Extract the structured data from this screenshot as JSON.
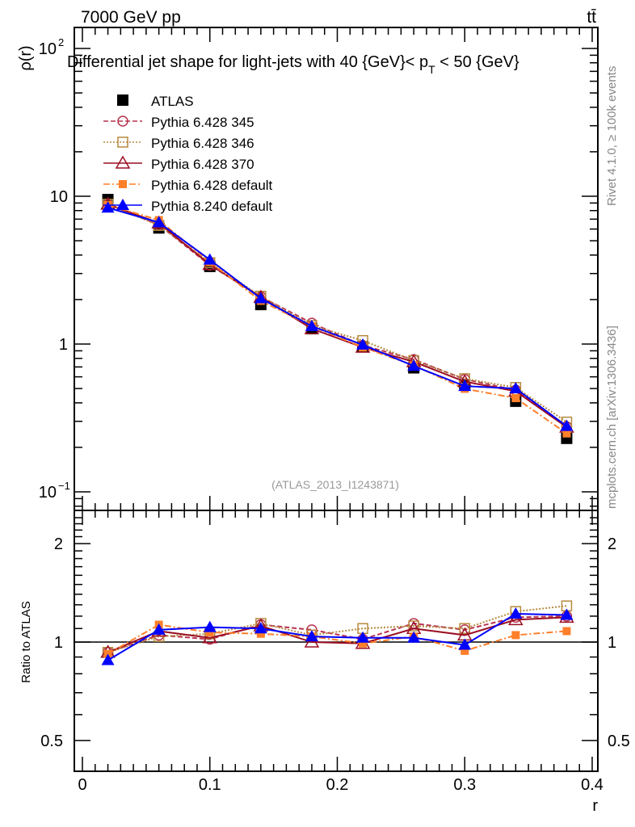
{
  "header": {
    "left": "7000 GeV pp",
    "right": "tt̄"
  },
  "side_texts": {
    "rivet": "Rivet 4.1.0, ≥ 100k events",
    "mcplots": "mcplots.cern.ch [arXiv:1306.3436]"
  },
  "chart_data": [
    {
      "type": "line",
      "title": "Differential jet shape for light-jets with 40 {GeV}< p_T < 50 {GeV}",
      "title_main": "Differential jet shape for light-jets with 40 {GeV}< p",
      "title_sub": "T",
      "title_end": " < 50 {GeV}",
      "ylabel": "ρ(r)",
      "xlabel": "r",
      "yscale": "log",
      "ylim": [
        0.08,
        140
      ],
      "xlim": [
        -0.008,
        0.41
      ],
      "watermark": "(ATLAS_2013_I1243871)",
      "yticks": [
        {
          "v": 0.1,
          "label": "10",
          "exp": "−1"
        },
        {
          "v": 1,
          "label": "1",
          "exp": ""
        },
        {
          "v": 10,
          "label": "10",
          "exp": ""
        },
        {
          "v": 100,
          "label": "10",
          "exp": "2"
        }
      ],
      "x": [
        0.02,
        0.06,
        0.1,
        0.14,
        0.18,
        0.22,
        0.26,
        0.3,
        0.34,
        0.38
      ],
      "atlas": [
        9.5,
        6.1,
        3.35,
        1.85,
        1.27,
        0.96,
        0.69,
        0.53,
        0.41,
        0.23
      ],
      "legend_position": "top-left"
    },
    {
      "type": "line",
      "ylabel": "Ratio to ATLAS",
      "yscale": "log",
      "ylim": [
        0.4,
        2.53
      ],
      "yticks": [
        {
          "v": 0.5,
          "label": "0.5"
        },
        {
          "v": 1,
          "label": "1"
        },
        {
          "v": 2,
          "label": "2"
        }
      ],
      "xticks": [
        {
          "v": 0,
          "label": "0"
        },
        {
          "v": 0.1,
          "label": "0.1"
        },
        {
          "v": 0.2,
          "label": "0.2"
        },
        {
          "v": 0.3,
          "label": "0.3"
        },
        {
          "v": 0.4,
          "label": "0.4"
        }
      ],
      "series": [
        {
          "name": "ATLAS",
          "color": "#000000",
          "marker": "square-filled",
          "dash": "none",
          "ratio": [
            1,
            1,
            1,
            1,
            1,
            1,
            1,
            1,
            1,
            1
          ]
        },
        {
          "name": "Pythia 6.428 345",
          "color": "#b8334f",
          "marker": "circle-open",
          "dash": "6,3",
          "ratio": [
            0.93,
            1.05,
            1.02,
            1.13,
            1.09,
            1.02,
            1.14,
            1.09,
            1.19,
            1.2
          ]
        },
        {
          "name": "Pythia 6.428 346",
          "color": "#b5893e",
          "marker": "square-open",
          "dash": "2,2",
          "ratio": [
            0.93,
            1.04,
            1.06,
            1.14,
            1.05,
            1.1,
            1.12,
            1.1,
            1.24,
            1.29
          ]
        },
        {
          "name": "Pythia 6.428 370",
          "color": "#9b0f24",
          "marker": "triangle-open",
          "dash": "none",
          "ratio": [
            0.93,
            1.08,
            1.03,
            1.12,
            1.0,
            0.99,
            1.1,
            1.05,
            1.17,
            1.19
          ]
        },
        {
          "name": "Pythia 6.428 default",
          "color": "#ff7f2a",
          "marker": "square-filled-small",
          "dash": "8,3,2,3",
          "ratio": [
            0.92,
            1.13,
            1.07,
            1.06,
            1.04,
            0.99,
            1.04,
            0.94,
            1.05,
            1.08
          ]
        },
        {
          "name": "Pythia 8.240 default",
          "color": "#0000ff",
          "marker": "triangle-filled",
          "dash": "none",
          "ratio": [
            0.88,
            1.09,
            1.11,
            1.1,
            1.04,
            1.03,
            1.03,
            0.98,
            1.22,
            1.21
          ]
        }
      ]
    }
  ]
}
